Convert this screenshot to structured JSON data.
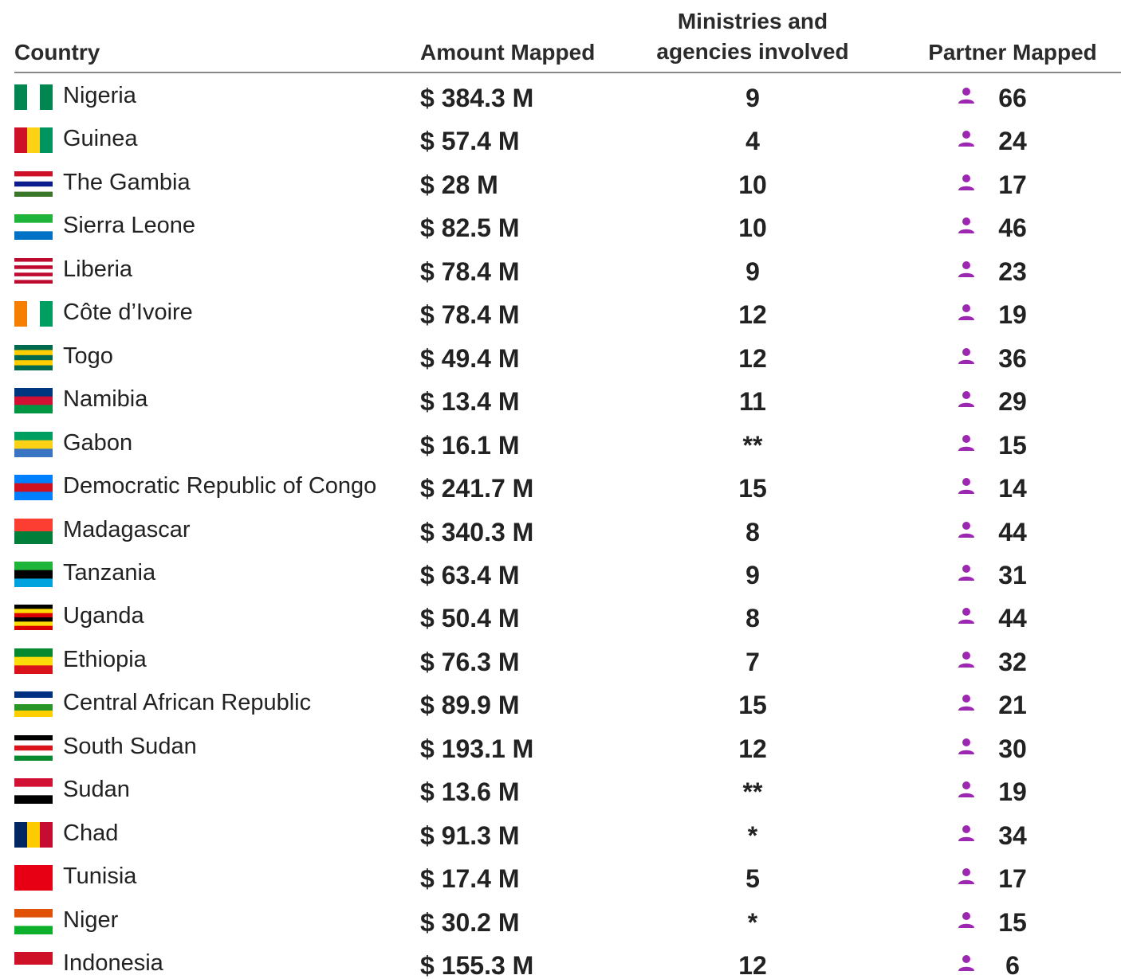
{
  "table": {
    "headers": [
      "Country",
      "Amount Mapped",
      "Ministries and agencies involved",
      "Partner Mapped"
    ],
    "rows": [
      [
        "Nigeria",
        "$ 384.3 M",
        "9",
        "66"
      ],
      [
        "Guinea",
        "$ 57.4 M",
        "4",
        "24"
      ],
      [
        "The Gambia",
        "$ 28 M",
        "10",
        "17"
      ],
      [
        "Sierra Leone",
        "$ 82.5 M",
        "10",
        "46"
      ],
      [
        "Liberia",
        "$ 78.4 M",
        "9",
        "23"
      ],
      [
        "Côte d’Ivoire",
        "$ 78.4 M",
        "12",
        "19"
      ],
      [
        "Togo",
        "$ 49.4 M",
        "12",
        "36"
      ],
      [
        "Namibia",
        "$ 13.4 M",
        "11",
        "29"
      ],
      [
        "Gabon",
        "$ 16.1 M",
        "**",
        "15"
      ],
      [
        "Democratic Republic of Congo",
        "$ 241.7 M",
        "15",
        "14"
      ],
      [
        "Madagascar",
        "$ 340.3 M",
        "8",
        "44"
      ],
      [
        "Tanzania",
        "$ 63.4 M",
        "9",
        "31"
      ],
      [
        "Uganda",
        "$ 50.4 M",
        "8",
        "44"
      ],
      [
        "Ethiopia",
        "$ 76.3 M",
        "7",
        "32"
      ],
      [
        "Central African Republic",
        "$ 89.9 M",
        "15",
        "21"
      ],
      [
        "South Sudan",
        "$ 193.1 M",
        "12",
        "30"
      ],
      [
        "Sudan",
        "$ 13.6 M",
        "**",
        "19"
      ],
      [
        "Chad",
        "$ 91.3 M",
        "*",
        "34"
      ],
      [
        "Tunisia",
        "$ 17.4 M",
        "5",
        "17"
      ],
      [
        "Niger",
        "$ 30.2 M",
        "*",
        "15"
      ],
      [
        "Indonesia",
        "$ 155.3 M",
        "12",
        "6"
      ]
    ]
  }
}
